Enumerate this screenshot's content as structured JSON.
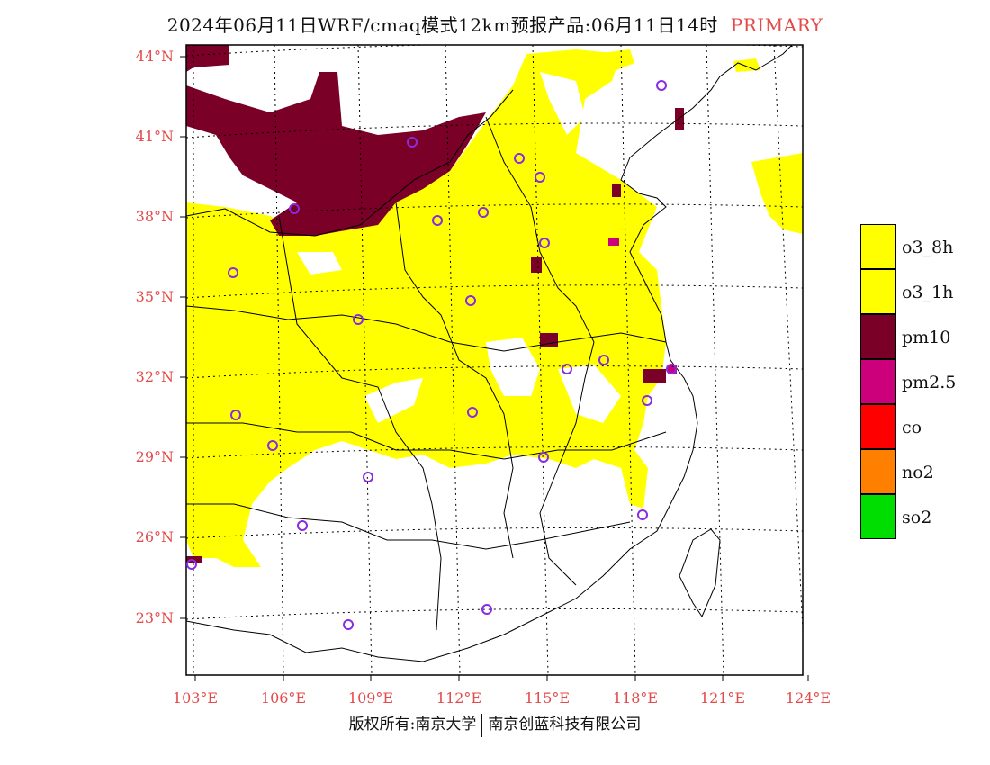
{
  "title": {
    "main": "2024年06月11日WRF/cmaq模式12km预报产品:06月11日14时",
    "tag": "PRIMARY",
    "tag_color": "#e34a4a"
  },
  "axes": {
    "lat_labels": [
      "44°N",
      "41°N",
      "38°N",
      "35°N",
      "32°N",
      "29°N",
      "26°N",
      "23°N"
    ],
    "lon_labels": [
      "103°E",
      "106°E",
      "109°E",
      "112°E",
      "115°E",
      "118°E",
      "121°E",
      "124°E"
    ]
  },
  "legend": [
    {
      "label": "o3_8h",
      "color": "#ffff00"
    },
    {
      "label": "o3_1h",
      "color": "#ffff00"
    },
    {
      "label": "pm10",
      "color": "#7a0028"
    },
    {
      "label": "pm2.5",
      "color": "#cc007a"
    },
    {
      "label": "co",
      "color": "#ff0000"
    },
    {
      "label": "no2",
      "color": "#ff7f00"
    },
    {
      "label": "so2",
      "color": "#00dd00"
    }
  ],
  "footer": {
    "left": "版权所有:南京大学",
    "right": "南京创蓝科技有限公司"
  },
  "colors": {
    "o3": "#ffff00",
    "pm10": "#7a0028",
    "pm25": "#cc007a",
    "station": "#8a2be2",
    "tick": "#e34a4a"
  }
}
